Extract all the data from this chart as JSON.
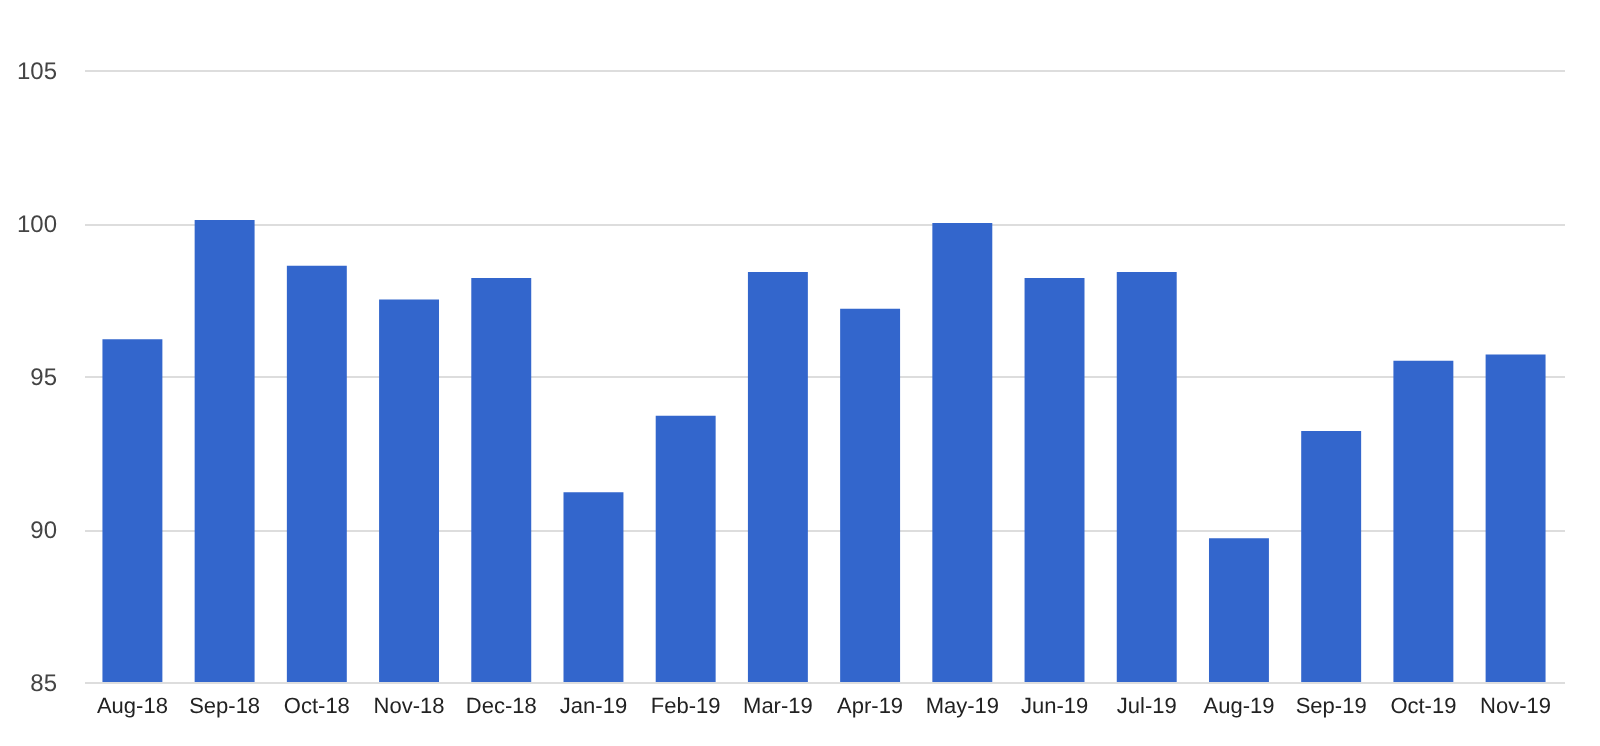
{
  "chart_data": {
    "type": "bar",
    "categories": [
      "Aug-18",
      "Sep-18",
      "Oct-18",
      "Nov-18",
      "Dec-18",
      "Jan-19",
      "Feb-19",
      "Mar-19",
      "Apr-19",
      "May-19",
      "Jun-19",
      "Jul-19",
      "Aug-19",
      "Sep-19",
      "Oct-19",
      "Nov-19"
    ],
    "values": [
      96.2,
      100.1,
      98.6,
      97.5,
      98.2,
      91.2,
      93.7,
      98.4,
      97.2,
      100.0,
      98.2,
      98.4,
      89.7,
      93.2,
      95.5,
      95.7
    ],
    "color": "#3366cc",
    "ylim": [
      85,
      105
    ],
    "yticks": [
      85,
      90,
      95,
      100,
      105
    ],
    "grid": "y"
  }
}
